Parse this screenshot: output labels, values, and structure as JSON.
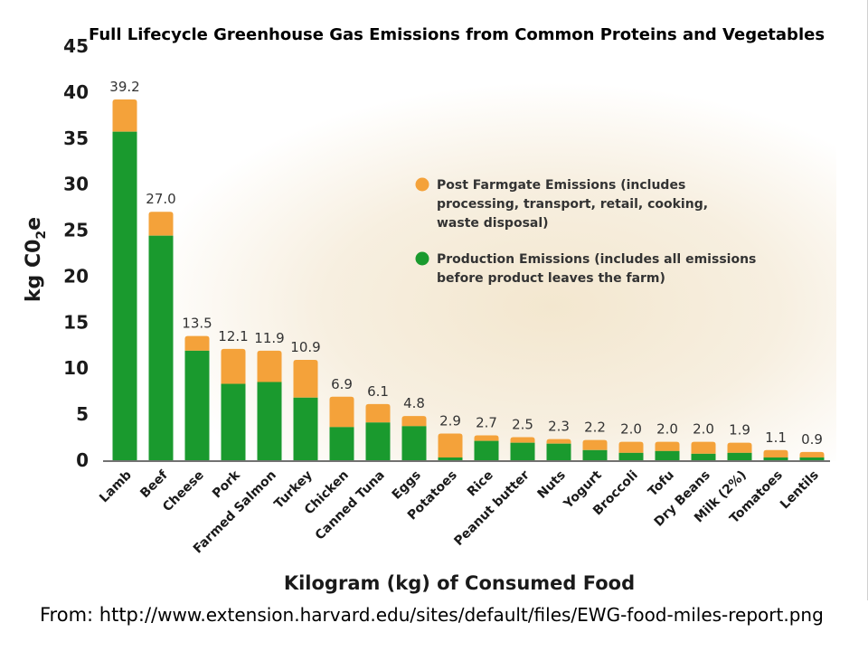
{
  "chart_data": {
    "type": "bar",
    "stacked": true,
    "title": "Full Lifecycle Greenhouse Gas Emissions from Common Proteins and Vegetables",
    "xlabel": "Kilogram (kg) of Consumed Food",
    "ylabel_main": "kg C0",
    "ylabel_sub": "2",
    "ylabel_tail": "e",
    "ylim": [
      0,
      45
    ],
    "yticks": [
      0,
      5,
      10,
      15,
      20,
      25,
      30,
      35,
      40,
      45
    ],
    "grid": false,
    "legend_position": "top-right",
    "categories": [
      "Lamb",
      "Beef",
      "Cheese",
      "Pork",
      "Farmed Salmon",
      "Turkey",
      "Chicken",
      "Canned Tuna",
      "Eggs",
      "Potatoes",
      "Rice",
      "Peanut butter",
      "Nuts",
      "Yogurt",
      "Broccoli",
      "Tofu",
      "Dry Beans",
      "Milk (2%)",
      "Tomatoes",
      "Lentils"
    ],
    "totals_labels": [
      "39.2",
      "27.0",
      "13.5",
      "12.1",
      "11.9",
      "10.9",
      "6.9",
      "6.1",
      "4.8",
      "2.9",
      "2.7",
      "2.5",
      "2.3",
      "2.2",
      "2.0",
      "2.0",
      "2.0",
      "1.9",
      "1.1",
      "0.9"
    ],
    "series": [
      {
        "name": "Production Emissions (includes all emissions before product leaves the farm)",
        "color": "#1a9a2e",
        "values": [
          35.7,
          24.4,
          11.9,
          8.3,
          8.5,
          6.8,
          3.6,
          4.1,
          3.7,
          0.3,
          2.1,
          1.9,
          1.8,
          1.1,
          0.8,
          1.0,
          0.7,
          0.8,
          0.3,
          0.3
        ]
      },
      {
        "name": "Post Farmgate Emissions (includes processing, transport, retail, cooking, waste disposal)",
        "color": "#f4a23a",
        "values": [
          3.5,
          2.6,
          1.6,
          3.8,
          3.4,
          4.1,
          3.3,
          2.0,
          1.1,
          2.6,
          0.6,
          0.6,
          0.5,
          1.1,
          1.2,
          1.0,
          1.3,
          1.1,
          0.8,
          0.6
        ]
      }
    ],
    "legend_lines": [
      [
        "Post Farmgate Emissions (includes",
        "processing, transport, retail, cooking,",
        "waste disposal)"
      ],
      [
        "Production Emissions (includes all emissions",
        "before product leaves the farm)"
      ]
    ]
  },
  "source": {
    "prefix": "From: http://",
    "url": "www.extension.harvard.edu/sites/default/files/EWG-food-miles-report.png"
  }
}
